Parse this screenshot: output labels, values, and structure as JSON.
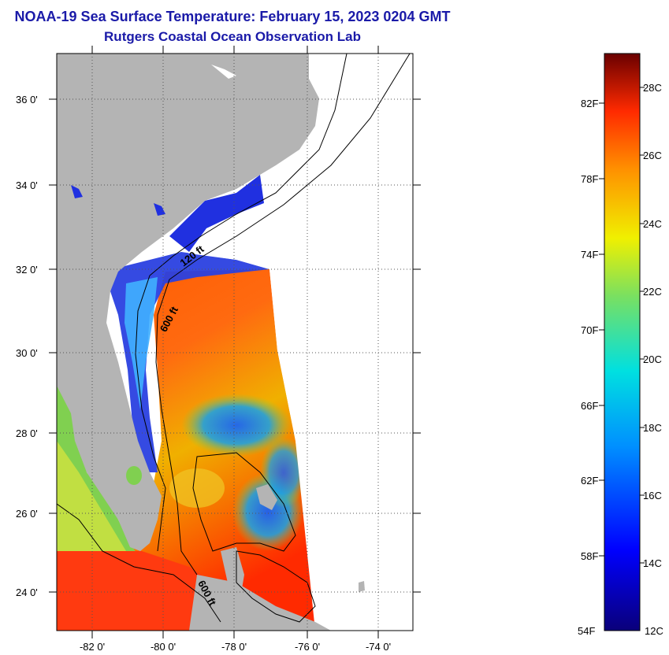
{
  "title": {
    "line1": "NOAA-19 Sea Surface Temperature:  February 15, 2023 0204 GMT",
    "line2": "Rutgers Coastal Ocean Observation Lab"
  },
  "map": {
    "lat_labels": [
      "36 0'",
      "34 0'",
      "32 0'",
      "30 0'",
      "28 0'",
      "26 0'",
      "24 0'"
    ],
    "lon_labels": [
      "-82 0'",
      "-80 0'",
      "-78 0'",
      "-76 0'",
      "-74 0'"
    ],
    "contour_labels": [
      "120 ft",
      "600 ft",
      "600 ft"
    ],
    "colors": {
      "land": "#b4b4b4",
      "cloud_or_nodata": "#ffffff",
      "grid": "#666666"
    }
  },
  "colorbar": {
    "fahrenheit_labels": [
      "82F",
      "78F",
      "74F",
      "70F",
      "66F",
      "62F",
      "58F",
      "54F"
    ],
    "celsius_labels": [
      "28C",
      "26C",
      "24C",
      "22C",
      "20C",
      "18C",
      "16C",
      "14C",
      "12C"
    ],
    "colors": [
      "#0a007a",
      "#0000ff",
      "#0090ff",
      "#00e0e0",
      "#7ae060",
      "#f0f000",
      "#ff9000",
      "#ff2a00",
      "#6a0000"
    ]
  }
}
